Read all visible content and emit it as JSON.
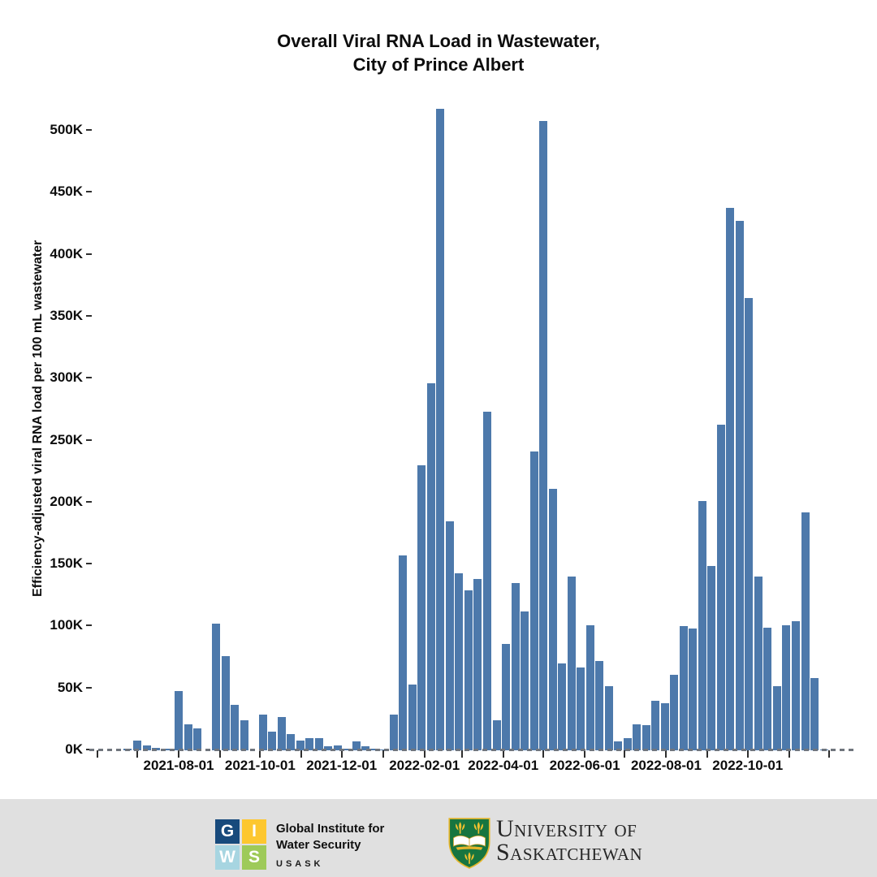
{
  "title": {
    "line1": "Overall Viral RNA Load in Wastewater,",
    "line2": "City of Prince Albert"
  },
  "chart_data": {
    "type": "bar",
    "title": "Overall Viral RNA Load in Wastewater, City of Prince Albert",
    "xlabel": "",
    "ylabel": "Efficiency-adjusted viral RNA load per 100 mL wastewater",
    "ylim_k": [
      0,
      530
    ],
    "grid": false,
    "legend": "none",
    "bar_color": "#4d79ab",
    "axis_color": "#2e2e2e",
    "y_ticks": [
      {
        "value_k": 0,
        "label": "0K"
      },
      {
        "value_k": 50,
        "label": "50K"
      },
      {
        "value_k": 100,
        "label": "100K"
      },
      {
        "value_k": 150,
        "label": "150K"
      },
      {
        "value_k": 200,
        "label": "200K"
      },
      {
        "value_k": 250,
        "label": "250K"
      },
      {
        "value_k": 300,
        "label": "300K"
      },
      {
        "value_k": 350,
        "label": "350K"
      },
      {
        "value_k": 400,
        "label": "400K"
      },
      {
        "value_k": 450,
        "label": "450K"
      },
      {
        "value_k": 500,
        "label": "500K"
      }
    ],
    "x_labeled_ticks": [
      "2021-08-01",
      "2021-10-01",
      "2021-12-01",
      "2022-02-01",
      "2022-04-01",
      "2022-06-01",
      "2022-08-01",
      "2022-10-01"
    ],
    "x_month_ticks": [
      "2021-06-01",
      "2021-07-01",
      "2021-08-01",
      "2021-09-01",
      "2021-10-01",
      "2021-11-01",
      "2021-12-01",
      "2022-01-01",
      "2022-02-01",
      "2022-03-01",
      "2022-04-01",
      "2022-05-01",
      "2022-06-01",
      "2022-07-01",
      "2022-08-01",
      "2022-09-01",
      "2022-10-01",
      "2022-11-01",
      "2022-12-01"
    ],
    "points": [
      {
        "date": "2021-06-24",
        "value_k": 1.5
      },
      {
        "date": "2021-07-01",
        "value_k": 8
      },
      {
        "date": "2021-07-08",
        "value_k": 4
      },
      {
        "date": "2021-07-15",
        "value_k": 2
      },
      {
        "date": "2021-07-22",
        "value_k": 1.5
      },
      {
        "date": "2021-08-01",
        "value_k": 48
      },
      {
        "date": "2021-08-08",
        "value_k": 21
      },
      {
        "date": "2021-08-15",
        "value_k": 18
      },
      {
        "date": "2021-08-22",
        "value_k": 0
      },
      {
        "date": "2021-08-29",
        "value_k": 102
      },
      {
        "date": "2021-09-05",
        "value_k": 76
      },
      {
        "date": "2021-09-12",
        "value_k": 37
      },
      {
        "date": "2021-09-19",
        "value_k": 24
      },
      {
        "date": "2021-09-26",
        "value_k": 0
      },
      {
        "date": "2021-10-03",
        "value_k": 29
      },
      {
        "date": "2021-10-10",
        "value_k": 15
      },
      {
        "date": "2021-10-17",
        "value_k": 27
      },
      {
        "date": "2021-10-24",
        "value_k": 13
      },
      {
        "date": "2021-10-31",
        "value_k": 8
      },
      {
        "date": "2021-11-07",
        "value_k": 10
      },
      {
        "date": "2021-11-14",
        "value_k": 10
      },
      {
        "date": "2021-11-21",
        "value_k": 3
      },
      {
        "date": "2021-11-28",
        "value_k": 4
      },
      {
        "date": "2021-12-05",
        "value_k": 1
      },
      {
        "date": "2021-12-12",
        "value_k": 7
      },
      {
        "date": "2021-12-19",
        "value_k": 3
      },
      {
        "date": "2021-12-26",
        "value_k": 1
      },
      {
        "date": "2022-01-02",
        "value_k": 0.5
      },
      {
        "date": "2022-01-09",
        "value_k": 29
      },
      {
        "date": "2022-01-16",
        "value_k": 157
      },
      {
        "date": "2022-01-23",
        "value_k": 53
      },
      {
        "date": "2022-01-30",
        "value_k": 230
      },
      {
        "date": "2022-02-06",
        "value_k": 296
      },
      {
        "date": "2022-02-13",
        "value_k": 518
      },
      {
        "date": "2022-02-20",
        "value_k": 185
      },
      {
        "date": "2022-02-27",
        "value_k": 143
      },
      {
        "date": "2022-03-06",
        "value_k": 129
      },
      {
        "date": "2022-03-13",
        "value_k": 138
      },
      {
        "date": "2022-03-20",
        "value_k": 273
      },
      {
        "date": "2022-03-27",
        "value_k": 24
      },
      {
        "date": "2022-04-03",
        "value_k": 86
      },
      {
        "date": "2022-04-10",
        "value_k": 135
      },
      {
        "date": "2022-04-17",
        "value_k": 112
      },
      {
        "date": "2022-04-24",
        "value_k": 241
      },
      {
        "date": "2022-05-01",
        "value_k": 508
      },
      {
        "date": "2022-05-08",
        "value_k": 211
      },
      {
        "date": "2022-05-15",
        "value_k": 70
      },
      {
        "date": "2022-05-22",
        "value_k": 140
      },
      {
        "date": "2022-05-29",
        "value_k": 67
      },
      {
        "date": "2022-06-05",
        "value_k": 101
      },
      {
        "date": "2022-06-12",
        "value_k": 72
      },
      {
        "date": "2022-06-19",
        "value_k": 52
      },
      {
        "date": "2022-06-26",
        "value_k": 7
      },
      {
        "date": "2022-07-03",
        "value_k": 10
      },
      {
        "date": "2022-07-10",
        "value_k": 21
      },
      {
        "date": "2022-07-17",
        "value_k": 20
      },
      {
        "date": "2022-07-24",
        "value_k": 40
      },
      {
        "date": "2022-07-31",
        "value_k": 38
      },
      {
        "date": "2022-08-07",
        "value_k": 61
      },
      {
        "date": "2022-08-14",
        "value_k": 100
      },
      {
        "date": "2022-08-21",
        "value_k": 98
      },
      {
        "date": "2022-08-28",
        "value_k": 201
      },
      {
        "date": "2022-09-04",
        "value_k": 149
      },
      {
        "date": "2022-09-11",
        "value_k": 263
      },
      {
        "date": "2022-09-18",
        "value_k": 438
      },
      {
        "date": "2022-09-25",
        "value_k": 427
      },
      {
        "date": "2022-10-02",
        "value_k": 365
      },
      {
        "date": "2022-10-09",
        "value_k": 140
      },
      {
        "date": "2022-10-16",
        "value_k": 99
      },
      {
        "date": "2022-10-23",
        "value_k": 52
      },
      {
        "date": "2022-10-30",
        "value_k": 101
      },
      {
        "date": "2022-11-06",
        "value_k": 104
      },
      {
        "date": "2022-11-13",
        "value_k": 192
      },
      {
        "date": "2022-11-20",
        "value_k": 58
      },
      {
        "date": "2022-11-27",
        "value_k": 0.5
      }
    ]
  },
  "footer": {
    "giws": {
      "squares": [
        {
          "letter": "G",
          "color": "#174a7c"
        },
        {
          "letter": "I",
          "color": "#fdc72f"
        },
        {
          "letter": "W",
          "color": "#a7d5e1"
        },
        {
          "letter": "S",
          "color": "#9eca59"
        }
      ],
      "line1": "Global Institute for",
      "line2": "Water Security",
      "line3": "USASK"
    },
    "usask": {
      "line1": "University of",
      "line2": "Saskatchewan",
      "shield_green": "#177540",
      "shield_gold": "#f2c12e"
    }
  }
}
